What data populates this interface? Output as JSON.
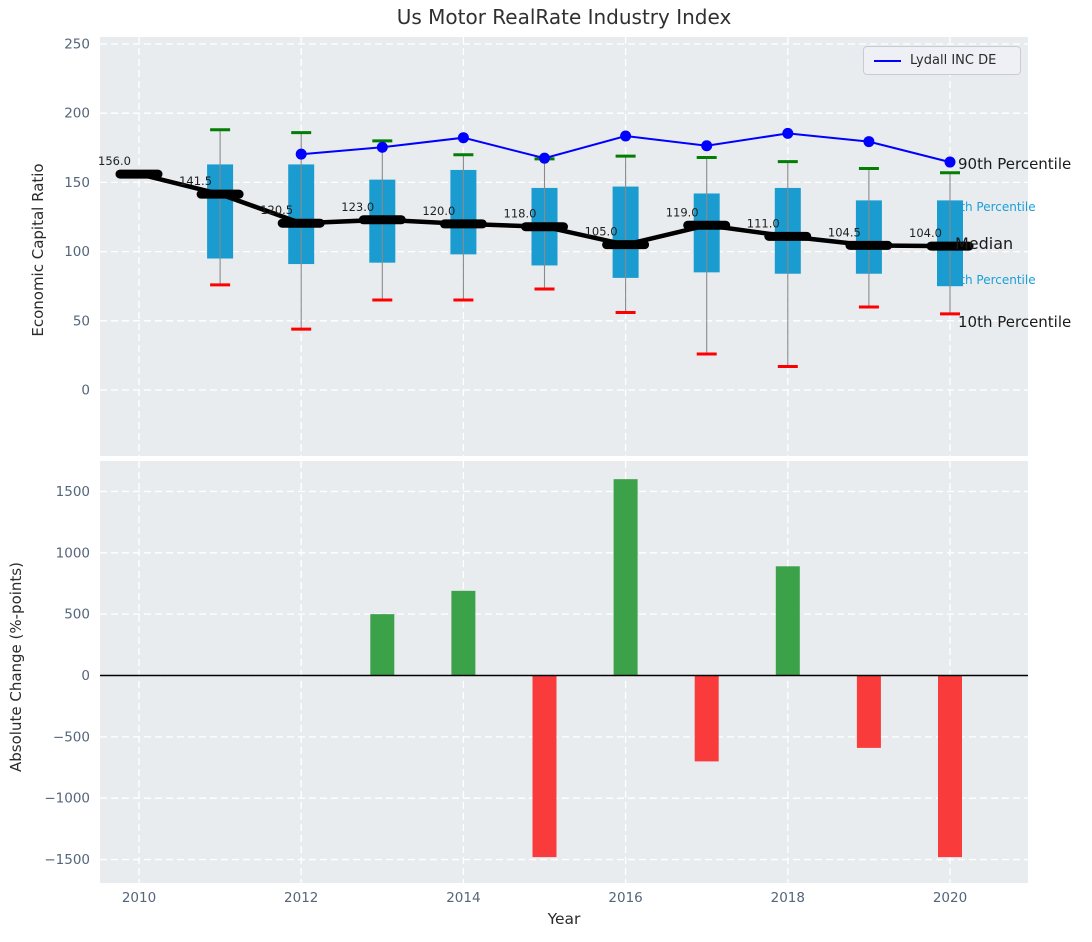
{
  "chart_data": [
    {
      "type": "box-line",
      "panel": "top",
      "title": "Us Motor RealRate Industry Index",
      "ylabel": "Economic Capital Ratio",
      "xlabel": "",
      "ylim": [
        -48,
        255
      ],
      "yticks": [
        0,
        50,
        100,
        150,
        200,
        250
      ],
      "xticks": [
        2010,
        2012,
        2014,
        2016,
        2018,
        2020
      ],
      "grid": true,
      "legend_position": "upper right",
      "background_color": "#e9ecef",
      "median_series": {
        "name": "Median",
        "color": "#000000",
        "x": [
          2010,
          2011,
          2012,
          2013,
          2014,
          2015,
          2016,
          2017,
          2018,
          2019,
          2020
        ],
        "values": [
          156.0,
          141.5,
          120.5,
          123.0,
          120.0,
          118.0,
          105.0,
          119.0,
          111.0,
          104.5,
          104.0
        ]
      },
      "boxes": {
        "color": "#1b9cd0",
        "whisker_color": "#8a8a8a",
        "cap_high_color": "#037d03",
        "cap_low_color": "#ff0000",
        "items": [
          {
            "year": 2011,
            "q1": 95,
            "q3": 163,
            "whisker_low": 76,
            "whisker_high": 188
          },
          {
            "year": 2012,
            "q1": 91,
            "q3": 163,
            "whisker_low": 44,
            "whisker_high": 186
          },
          {
            "year": 2013,
            "q1": 92,
            "q3": 152,
            "whisker_low": 65,
            "whisker_high": 180
          },
          {
            "year": 2014,
            "q1": 98,
            "q3": 159,
            "whisker_low": 65,
            "whisker_high": 170
          },
          {
            "year": 2015,
            "q1": 90,
            "q3": 146,
            "whisker_low": 73,
            "whisker_high": 167
          },
          {
            "year": 2016,
            "q1": 81,
            "q3": 147,
            "whisker_low": 56,
            "whisker_high": 169
          },
          {
            "year": 2017,
            "q1": 85,
            "q3": 142,
            "whisker_low": 26,
            "whisker_high": 168
          },
          {
            "year": 2018,
            "q1": 84,
            "q3": 146,
            "whisker_low": 17,
            "whisker_high": 165
          },
          {
            "year": 2019,
            "q1": 84,
            "q3": 137,
            "whisker_low": 60,
            "whisker_high": 160
          },
          {
            "year": 2020,
            "q1": 75,
            "q3": 137,
            "whisker_low": 55,
            "whisker_high": 157
          }
        ]
      },
      "company_line": {
        "name": "Lydall INC DE",
        "color": "#0000ff",
        "x": [
          2012,
          2013,
          2014,
          2015,
          2016,
          2017,
          2018,
          2019,
          2020
        ],
        "values": [
          170.4,
          175.4,
          182.3,
          167.5,
          183.5,
          176.5,
          185.4,
          179.5,
          164.7
        ]
      },
      "annotations": {
        "p90": {
          "text": "90th Percentile",
          "color": "#1a1a1a"
        },
        "p75": {
          "text": "75th Percentile",
          "color": "#1b9fd6"
        },
        "median": {
          "text": "Median",
          "color": "#1a1a1a"
        },
        "p25": {
          "text": "25th Percentile",
          "color": "#1b9fd6"
        },
        "p10": {
          "text": "10th Percentile",
          "color": "#1a1a1a"
        }
      }
    },
    {
      "type": "bar",
      "panel": "bottom",
      "ylabel": "Absolute Change (%-points)",
      "xlabel": "Year",
      "ylim": [
        -1675,
        1775
      ],
      "yticks": [
        -1500,
        -1000,
        -500,
        0,
        500,
        1000,
        1500
      ],
      "xticks": [
        2010,
        2012,
        2014,
        2016,
        2018,
        2020
      ],
      "grid": true,
      "background_color": "#e9ecef",
      "categories": [
        2013,
        2014,
        2015,
        2016,
        2017,
        2018,
        2019,
        2020
      ],
      "values": [
        500,
        690,
        -1480,
        1600,
        -700,
        890,
        -590,
        -1480
      ],
      "positive_color": "#3ca24a",
      "negative_color": "#fa3b3b",
      "zero_line_color": "#000000"
    }
  ]
}
